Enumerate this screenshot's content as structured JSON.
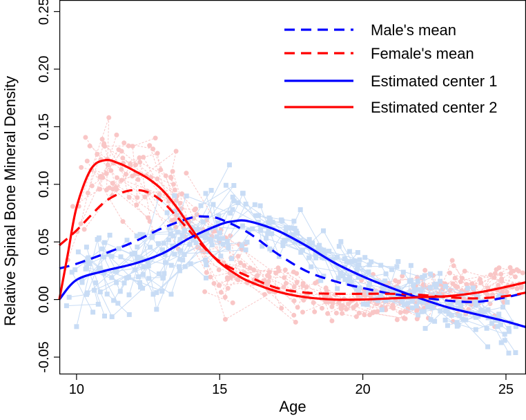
{
  "chart_data": {
    "type": "line",
    "title": "",
    "xlabel": "Age",
    "ylabel": "Relative Spinal Bone Mineral Density",
    "xlim": [
      9.4,
      25.7
    ],
    "ylim": [
      -0.065,
      0.26
    ],
    "x_ticks": [
      10,
      15,
      20,
      25
    ],
    "x_tick_labels": [
      "10",
      "15",
      "20",
      "25"
    ],
    "y_ticks": [
      -0.05,
      0.0,
      0.05,
      0.1,
      0.15,
      0.2,
      0.25
    ],
    "y_tick_labels": [
      "-0.05",
      "0.00",
      "0.05",
      "0.10",
      "0.15",
      "0.20",
      "0.25"
    ],
    "grid": false,
    "legend_position": "top-right",
    "colors": {
      "male": "#0000ff",
      "female": "#ff0000",
      "male_points": "#c8dcf5",
      "female_points": "#f9c6c6"
    },
    "series": [
      {
        "name": "Male's mean",
        "style": "dashed",
        "color": "#0000ff",
        "x": [
          9.4,
          10,
          11,
          12,
          13,
          14,
          14.5,
          15,
          16,
          17,
          18,
          19,
          20,
          21,
          22,
          23,
          24,
          25,
          25.7
        ],
        "y": [
          0.027,
          0.031,
          0.04,
          0.05,
          0.062,
          0.071,
          0.072,
          0.07,
          0.058,
          0.04,
          0.025,
          0.016,
          0.01,
          0.005,
          0.002,
          -0.001,
          -0.002,
          0.002,
          0.006
        ]
      },
      {
        "name": "Female's mean",
        "style": "dashed",
        "color": "#ff0000",
        "x": [
          9.4,
          10,
          10.5,
          11,
          11.5,
          12,
          12.5,
          13,
          13.5,
          14,
          14.5,
          15,
          15.5,
          16,
          17,
          18,
          19,
          20,
          21,
          22,
          23,
          24,
          25,
          25.7
        ],
        "y": [
          0.047,
          0.06,
          0.073,
          0.085,
          0.092,
          0.095,
          0.093,
          0.085,
          0.072,
          0.058,
          0.044,
          0.033,
          0.026,
          0.02,
          0.01,
          0.006,
          0.005,
          0.005,
          0.005,
          0.004,
          0.002,
          0.001,
          0.003,
          0.006
        ]
      },
      {
        "name": "Estimated center 1",
        "style": "solid",
        "color": "#0000ff",
        "x": [
          9.4,
          10,
          11,
          12,
          13,
          14,
          15,
          15.5,
          16,
          17,
          18,
          19,
          20,
          21,
          22,
          23,
          24,
          25,
          25.7
        ],
        "y": [
          0.0,
          0.017,
          0.025,
          0.031,
          0.04,
          0.054,
          0.065,
          0.068,
          0.068,
          0.06,
          0.047,
          0.032,
          0.02,
          0.01,
          0.001,
          -0.007,
          -0.013,
          -0.019,
          -0.024
        ]
      },
      {
        "name": "Estimated center 2",
        "style": "solid",
        "color": "#ff0000",
        "x": [
          9.4,
          9.7,
          10,
          10.5,
          11,
          11.5,
          12,
          12.5,
          13,
          13.5,
          14,
          14.5,
          15,
          15.5,
          16,
          17,
          18,
          19,
          20,
          21,
          22,
          23,
          24,
          25,
          25.7
        ],
        "y": [
          0.0,
          0.04,
          0.08,
          0.113,
          0.121,
          0.118,
          0.112,
          0.105,
          0.095,
          0.08,
          0.062,
          0.045,
          0.032,
          0.023,
          0.016,
          0.007,
          0.002,
          0.0,
          0.0,
          0.001,
          0.002,
          0.003,
          0.006,
          0.011,
          0.015
        ]
      }
    ]
  }
}
